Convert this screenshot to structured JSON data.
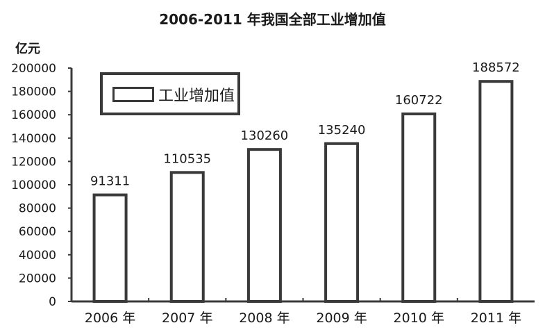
{
  "chart_data": {
    "type": "bar",
    "title": "2006-2011 年我国全部工业增加值",
    "ylabel": "亿元",
    "xlabel": "",
    "categories": [
      "2006 年",
      "2007 年",
      "2008 年",
      "2009 年",
      "2010 年",
      "2011 年"
    ],
    "series": [
      {
        "name": "工业增加值",
        "values": [
          91311,
          110535,
          130260,
          135240,
          160722,
          188572
        ]
      }
    ],
    "data_labels": [
      "91311",
      "110535",
      "130260",
      "135240",
      "160722",
      "188572"
    ],
    "ylim": [
      0,
      200000
    ],
    "yticks": [
      "0",
      "20000",
      "40000",
      "60000",
      "80000",
      "100000",
      "120000",
      "140000",
      "160000",
      "180000",
      "200000"
    ],
    "grid": false,
    "legend_position": "top-left",
    "colors": {
      "bar_fill": "#ffffff",
      "bar_stroke": "#3a3a3a",
      "axis": "#3a3a3a",
      "text": "#1a1a1a"
    }
  }
}
